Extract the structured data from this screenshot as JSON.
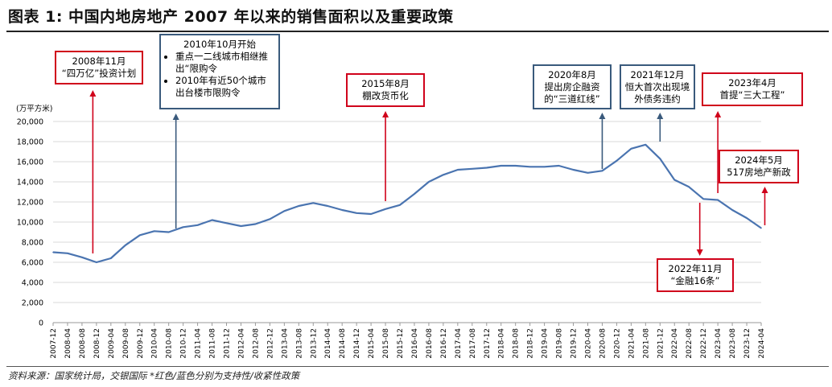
{
  "title": "图表 1: 中国内地房地产 2007 年以来的销售面积以及重要政策",
  "source": "资料来源：国家统计局，交银国际   *红色/蓝色分别为支持性/收紧性政策",
  "colors": {
    "line": "#4a74b0",
    "support": "#d0021b",
    "tighten": "#3a5a7c",
    "grid": "#d9d9d9"
  },
  "annotations": {
    "a2008": {
      "date": "2008年11月",
      "text": "“四万亿”投资计划"
    },
    "a2010": {
      "date": "2010年10月开始",
      "items": [
        "重点一二线城市相继推出“限购令",
        "2010年有近50个城市出台楼市限购令"
      ]
    },
    "a2015": {
      "date": "2015年8月",
      "text": "棚改货币化"
    },
    "a2020": {
      "date": "2020年8月",
      "text": "提出房企融资的“三道红线”"
    },
    "a2021": {
      "date": "2021年12月",
      "text": "恒大首次出现境外债务违约"
    },
    "a2022": {
      "date": "2022年11月",
      "text": "“金融16条”"
    },
    "a2023": {
      "date": "2023年4月",
      "text": "首提“三大工程”"
    },
    "a2024": {
      "date": "2024年5月",
      "text": "517房地产新政"
    }
  },
  "chart_data": {
    "type": "line",
    "ylabel": "(万平方米)",
    "ylim": [
      0,
      20000
    ],
    "yticks": [
      0,
      2000,
      4000,
      6000,
      8000,
      10000,
      12000,
      14000,
      16000,
      18000,
      20000
    ],
    "xticks": [
      "2007-12",
      "2008-04",
      "2008-08",
      "2008-12",
      "2009-04",
      "2009-08",
      "2009-12",
      "2010-04",
      "2010-08",
      "2010-12",
      "2011-04",
      "2011-08",
      "2011-12",
      "2012-04",
      "2012-08",
      "2012-12",
      "2013-04",
      "2013-08",
      "2013-12",
      "2014-04",
      "2014-08",
      "2014-12",
      "2015-04",
      "2015-08",
      "2015-12",
      "2016-04",
      "2016-08",
      "2016-12",
      "2017-04",
      "2017-08",
      "2017-12",
      "2018-04",
      "2018-08",
      "2018-12",
      "2019-04",
      "2019-08",
      "2019-12",
      "2020-04",
      "2020-08",
      "2020-12",
      "2021-04",
      "2021-08",
      "2021-12",
      "2022-04",
      "2022-08",
      "2022-12",
      "2023-04",
      "2023-08",
      "2023-12",
      "2024-04"
    ],
    "grid": true,
    "legend": "none",
    "series": [
      {
        "x": [
          "2007-12",
          "2008-04",
          "2008-08",
          "2008-12",
          "2009-04",
          "2009-08",
          "2009-12",
          "2010-04",
          "2010-08",
          "2010-12",
          "2011-04",
          "2011-08",
          "2011-12",
          "2012-04",
          "2012-08",
          "2012-12",
          "2013-04",
          "2013-08",
          "2013-12",
          "2014-04",
          "2014-08",
          "2014-12",
          "2015-04",
          "2015-08",
          "2015-12",
          "2016-04",
          "2016-08",
          "2016-12",
          "2017-04",
          "2017-08",
          "2017-12",
          "2018-04",
          "2018-08",
          "2018-12",
          "2019-04",
          "2019-08",
          "2019-12",
          "2020-04",
          "2020-08",
          "2020-12",
          "2021-04",
          "2021-08",
          "2021-12",
          "2022-04",
          "2022-08",
          "2022-12",
          "2023-04",
          "2023-08",
          "2023-12",
          "2024-04"
        ],
        "values": [
          7000,
          6900,
          6500,
          6000,
          6400,
          7700,
          8700,
          9100,
          9000,
          9500,
          9700,
          10200,
          9900,
          9600,
          9800,
          10300,
          11100,
          11600,
          11900,
          11600,
          11200,
          10900,
          10800,
          11300,
          11700,
          12800,
          14000,
          14700,
          15200,
          15300,
          15400,
          15600,
          15600,
          15500,
          15500,
          15600,
          15200,
          14900,
          15100,
          16100,
          17300,
          17700,
          16300,
          14200,
          13500,
          12300,
          12200,
          11200,
          10400,
          9400
        ]
      }
    ]
  }
}
